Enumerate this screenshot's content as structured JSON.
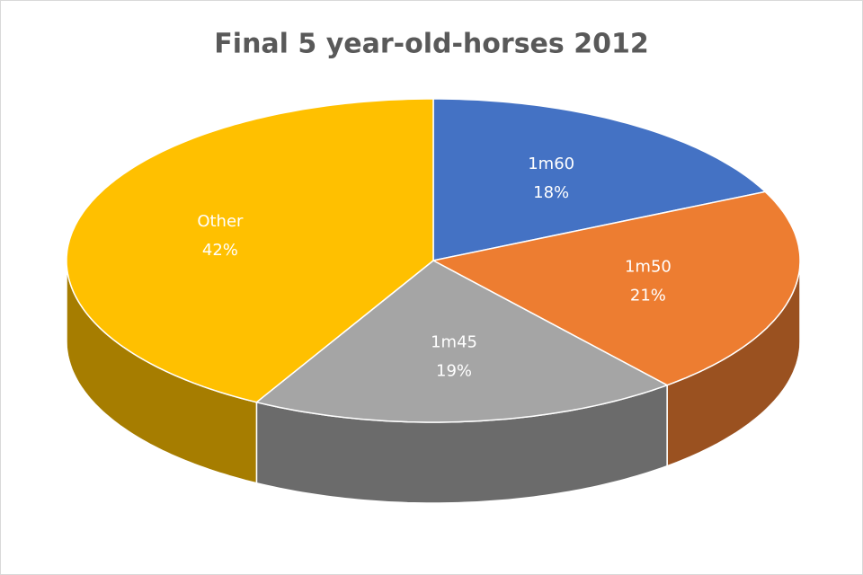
{
  "chart_data": {
    "type": "pie",
    "title": "Final 5 year-old-horses 2012",
    "categories": [
      "1m60",
      "1m50",
      "1m45",
      "Other"
    ],
    "values": [
      18,
      21,
      19,
      42
    ],
    "value_labels": [
      "18%",
      "21%",
      "19%",
      "42%"
    ],
    "colors": [
      "#4472c4",
      "#ed7d31",
      "#a5a5a5",
      "#ffc000"
    ]
  }
}
